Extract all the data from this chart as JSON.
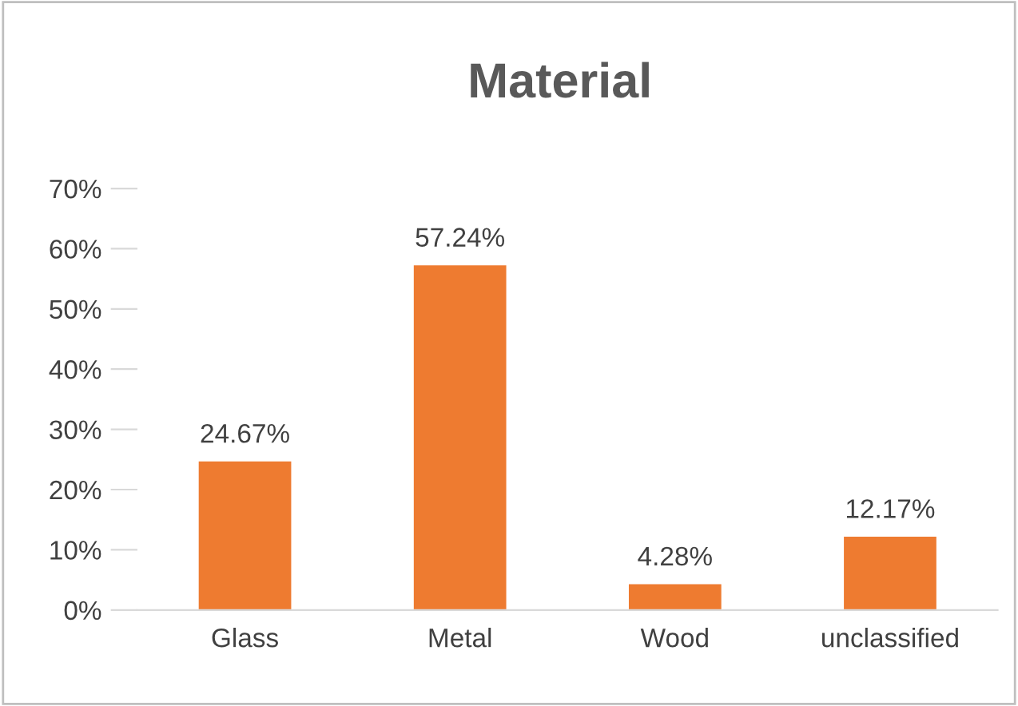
{
  "chart_data": {
    "type": "bar",
    "title": "Material",
    "categories": [
      "Glass",
      "Metal",
      "Wood",
      "unclassified"
    ],
    "values": [
      24.67,
      57.24,
      4.28,
      12.17
    ],
    "value_labels": [
      "24.67%",
      "57.24%",
      "4.28%",
      "12.17%"
    ],
    "color": "#ee7b30",
    "ylim": [
      0,
      70
    ],
    "yticks": [
      {
        "value": 0,
        "label": "0%"
      },
      {
        "value": 10,
        "label": "10%"
      },
      {
        "value": 20,
        "label": "20%"
      },
      {
        "value": 30,
        "label": "30%"
      },
      {
        "value": 40,
        "label": "40%"
      },
      {
        "value": 50,
        "label": "50%"
      },
      {
        "value": 60,
        "label": "60%"
      },
      {
        "value": 70,
        "label": "70%"
      }
    ],
    "grid": false,
    "legend": false
  }
}
